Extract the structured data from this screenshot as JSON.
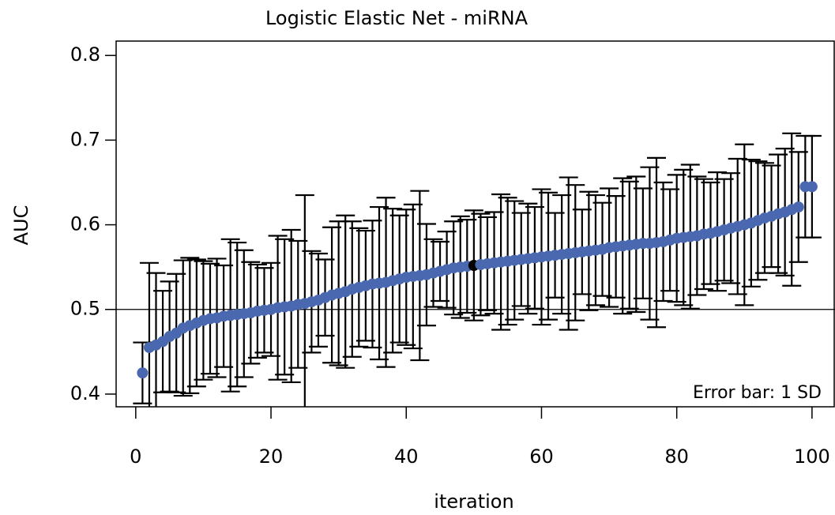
{
  "chart_data": {
    "type": "errorbar",
    "title": "Logistic Elastic Net - miRNA",
    "x_label": "iteration",
    "y_label": "AUC",
    "annotation": "Error bar: 1 SD",
    "x": [
      1,
      2,
      3,
      4,
      5,
      6,
      7,
      8,
      9,
      10,
      11,
      12,
      13,
      14,
      15,
      16,
      17,
      18,
      19,
      20,
      21,
      22,
      23,
      24,
      25,
      26,
      27,
      28,
      29,
      30,
      31,
      32,
      33,
      34,
      35,
      36,
      37,
      38,
      39,
      40,
      41,
      42,
      43,
      44,
      45,
      46,
      47,
      48,
      49,
      50,
      51,
      52,
      53,
      54,
      55,
      56,
      57,
      58,
      59,
      60,
      61,
      62,
      63,
      64,
      65,
      66,
      67,
      68,
      69,
      70,
      71,
      72,
      73,
      74,
      75,
      76,
      77,
      78,
      79,
      80,
      81,
      82,
      83,
      84,
      85,
      86,
      87,
      88,
      89,
      90,
      91,
      92,
      93,
      94,
      95,
      96,
      97,
      98,
      99,
      100
    ],
    "values": [
      0.425,
      0.455,
      0.458,
      0.462,
      0.468,
      0.472,
      0.478,
      0.481,
      0.484,
      0.487,
      0.489,
      0.49,
      0.492,
      0.493,
      0.494,
      0.495,
      0.496,
      0.498,
      0.499,
      0.5,
      0.502,
      0.503,
      0.504,
      0.506,
      0.507,
      0.509,
      0.511,
      0.514,
      0.517,
      0.519,
      0.521,
      0.524,
      0.526,
      0.528,
      0.53,
      0.531,
      0.532,
      0.534,
      0.536,
      0.538,
      0.539,
      0.54,
      0.541,
      0.543,
      0.545,
      0.547,
      0.549,
      0.55,
      0.551,
      0.552,
      0.553,
      0.554,
      0.555,
      0.556,
      0.557,
      0.558,
      0.559,
      0.56,
      0.561,
      0.562,
      0.563,
      0.564,
      0.565,
      0.566,
      0.567,
      0.568,
      0.569,
      0.57,
      0.571,
      0.573,
      0.574,
      0.575,
      0.576,
      0.577,
      0.578,
      0.578,
      0.579,
      0.58,
      0.582,
      0.584,
      0.585,
      0.586,
      0.587,
      0.589,
      0.59,
      0.592,
      0.594,
      0.596,
      0.598,
      0.6,
      0.602,
      0.605,
      0.608,
      0.61,
      0.613,
      0.615,
      0.618,
      0.621,
      0.645,
      0.645
    ],
    "errors": [
      0.036,
      0.1,
      0.085,
      0.06,
      0.065,
      0.07,
      0.08,
      0.08,
      0.075,
      0.07,
      0.065,
      0.07,
      0.06,
      0.09,
      0.085,
      0.075,
      0.06,
      0.055,
      0.05,
      0.055,
      0.085,
      0.08,
      0.09,
      0.075,
      0.128,
      0.06,
      0.055,
      0.045,
      0.08,
      0.085,
      0.09,
      0.08,
      0.07,
      0.065,
      0.075,
      0.09,
      0.1,
      0.085,
      0.075,
      0.08,
      0.085,
      0.1,
      0.06,
      0.04,
      0.035,
      0.045,
      0.055,
      0.06,
      0.055,
      0.065,
      0.06,
      0.055,
      0.06,
      0.08,
      0.075,
      0.07,
      0.055,
      0.065,
      0.06,
      0.08,
      0.075,
      0.05,
      0.07,
      0.09,
      0.08,
      0.05,
      0.07,
      0.065,
      0.055,
      0.07,
      0.06,
      0.08,
      0.075,
      0.08,
      0.065,
      0.09,
      0.1,
      0.07,
      0.06,
      0.075,
      0.08,
      0.085,
      0.07,
      0.065,
      0.06,
      0.07,
      0.06,
      0.065,
      0.08,
      0.095,
      0.075,
      0.07,
      0.065,
      0.06,
      0.07,
      0.075,
      0.09,
      0.065,
      0.06,
      0.06
    ],
    "color": "#4a68b0",
    "highlight_x": 50,
    "highlight_color": "#000000",
    "reference_line": 0.5,
    "xlim": [
      -2.9,
      103.4
    ],
    "ylim": [
      0.385,
      0.817
    ],
    "xticks": [
      0,
      20,
      40,
      60,
      80,
      100
    ],
    "yticks": [
      0.4,
      0.5,
      0.6,
      0.7,
      0.8
    ]
  }
}
